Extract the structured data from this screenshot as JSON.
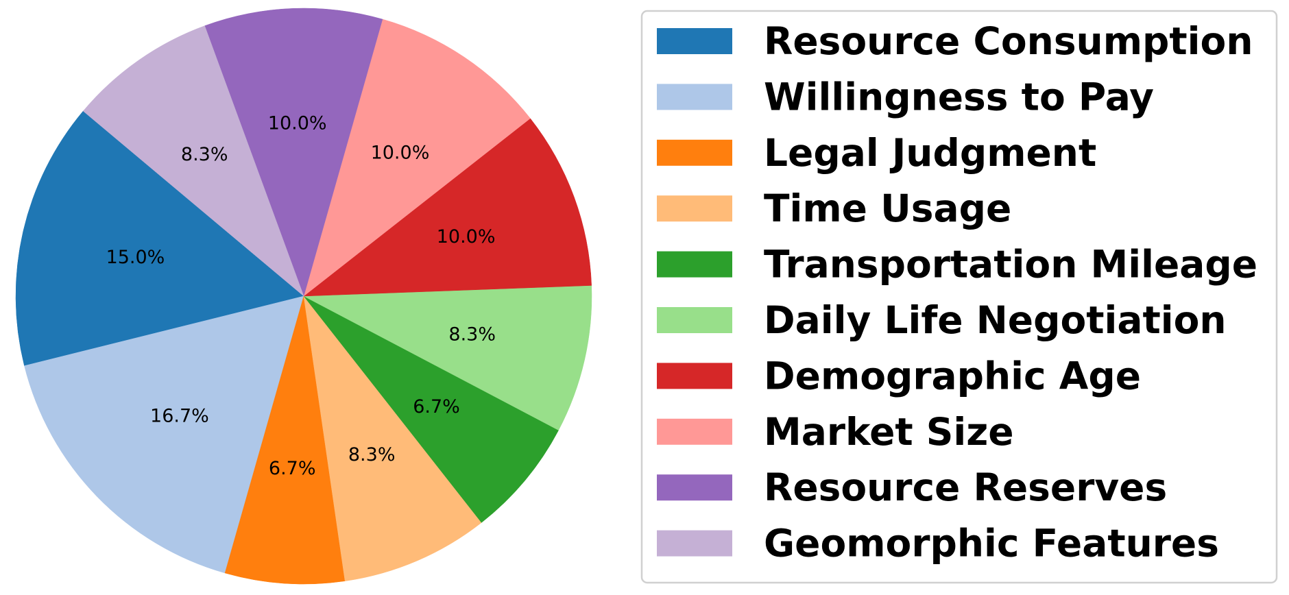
{
  "chart_data": {
    "type": "pie",
    "title": "",
    "start_angle_deg": 140,
    "direction": "counterclockwise",
    "legend_position": "right",
    "slices": [
      {
        "label": "Resource Consumption",
        "value": 15.0,
        "pct_label": "15.0%",
        "color": "#1f77b4"
      },
      {
        "label": "Willingness to Pay",
        "value": 16.7,
        "pct_label": "16.7%",
        "color": "#aec7e8"
      },
      {
        "label": "Legal Judgment",
        "value": 6.7,
        "pct_label": "6.7%",
        "color": "#ff7f0e"
      },
      {
        "label": "Time Usage",
        "value": 8.3,
        "pct_label": "8.3%",
        "color": "#ffbb78"
      },
      {
        "label": "Transportation Mileage",
        "value": 6.7,
        "pct_label": "6.7%",
        "color": "#2ca02c"
      },
      {
        "label": "Daily Life Negotiation",
        "value": 8.3,
        "pct_label": "8.3%",
        "color": "#98df8a"
      },
      {
        "label": "Demographic Age",
        "value": 10.0,
        "pct_label": "10.0%",
        "color": "#d62728"
      },
      {
        "label": "Market Size",
        "value": 10.0,
        "pct_label": "10.0%",
        "color": "#ff9896"
      },
      {
        "label": "Resource Reserves",
        "value": 10.0,
        "pct_label": "10.0%",
        "color": "#9467bd"
      },
      {
        "label": "Geomorphic Features",
        "value": 8.3,
        "pct_label": "8.3%",
        "color": "#c5b0d5"
      }
    ]
  }
}
